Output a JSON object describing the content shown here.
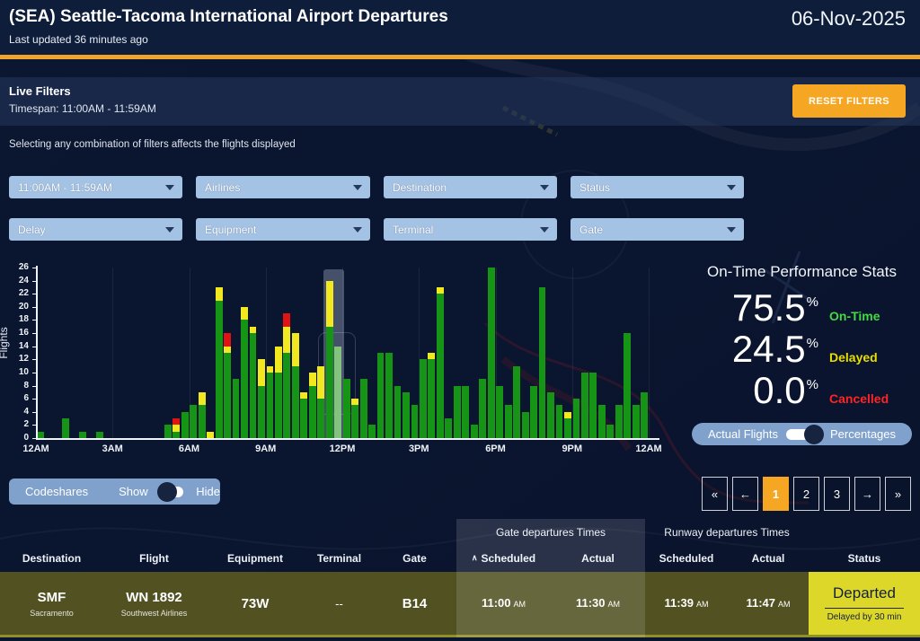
{
  "header": {
    "title": "(SEA) Seattle-Tacoma International Airport Departures",
    "subtitle": "Last updated 36 minutes ago",
    "date": "06-Nov-2025"
  },
  "filters": {
    "panel_title": "Live Filters",
    "timespan_label": "Timespan: 11:00AM - 11:59AM",
    "reset_button": "RESET FILTERS",
    "hint": "Selecting any combination of filters affects the flights displayed",
    "dropdowns": [
      "11:00AM - 11:59AM",
      "Airlines",
      "Destination",
      "Status",
      "Delay",
      "Equipment",
      "Terminal",
      "Gate"
    ]
  },
  "stats": {
    "title": "On-Time Performance Stats",
    "items": [
      {
        "value": "75.5",
        "unit": "%",
        "label": "On-Time",
        "color": "#43d943"
      },
      {
        "value": "24.5",
        "unit": "%",
        "label": "Delayed",
        "color": "#e8de00"
      },
      {
        "value": "0.0",
        "unit": "%",
        "label": "Cancelled",
        "color": "#ff2424"
      }
    ],
    "toggle": {
      "left": "Actual Flights",
      "right": "Percentages",
      "selected": "Percentages"
    }
  },
  "codeshares": {
    "label": "Codeshares",
    "left": "Show",
    "right": "Hide",
    "selected": "Show"
  },
  "pagination": {
    "buttons": [
      "«",
      "←",
      "1",
      "2",
      "3",
      "→",
      "»"
    ],
    "active": "1"
  },
  "table": {
    "group_headers": {
      "gate": "Gate departures Times",
      "runway": "Runway departures Times"
    },
    "columns": [
      "Destination",
      "Flight",
      "Equipment",
      "Terminal",
      "Gate",
      "Scheduled",
      "Actual",
      "Scheduled",
      "Actual",
      "Status"
    ],
    "sort_indicator": "∧",
    "rows": [
      {
        "destination": "SMF",
        "destination_sub": "Sacramento",
        "flight": "WN 1892",
        "flight_sub": "Southwest Airlines",
        "equipment": "73W",
        "terminal": "--",
        "gate": "B14",
        "gate_scheduled": {
          "time": "11:00",
          "meridiem": "AM"
        },
        "gate_actual": {
          "time": "11:30",
          "meridiem": "AM"
        },
        "runway_scheduled": {
          "time": "11:39",
          "meridiem": "AM"
        },
        "runway_actual": {
          "time": "11:47",
          "meridiem": "AM"
        },
        "status": "Departed",
        "status_sub": "Delayed by 30 min"
      }
    ]
  },
  "chart_data": {
    "type": "bar",
    "stacked": true,
    "title": "",
    "xlabel": "",
    "ylabel": "Flights",
    "ylim": [
      0,
      26
    ],
    "ytick_step": 2,
    "x_description": "Time of day in 20-minute bins, 12AM to 12AM",
    "x_labels": [
      "12AM",
      "3AM",
      "6AM",
      "9AM",
      "12PM",
      "3PM",
      "6PM",
      "9PM",
      "12AM"
    ],
    "label_every_bins": 9,
    "series_names": [
      "On-Time (green)",
      "Delayed (yellow)",
      "Cancelled (red)"
    ],
    "bars": [
      [
        1,
        0,
        0
      ],
      [
        0,
        0,
        0
      ],
      [
        0,
        0,
        0
      ],
      [
        3,
        0,
        0
      ],
      [
        0,
        0,
        0
      ],
      [
        1,
        0,
        0
      ],
      [
        0,
        0,
        0
      ],
      [
        1,
        0,
        0
      ],
      [
        0,
        0,
        0
      ],
      [
        0,
        0,
        0
      ],
      [
        0,
        0,
        0
      ],
      [
        0,
        0,
        0
      ],
      [
        0,
        0,
        0
      ],
      [
        0,
        0,
        0
      ],
      [
        0,
        0,
        0
      ],
      [
        2,
        0,
        0
      ],
      [
        1,
        1,
        1
      ],
      [
        4,
        0,
        0
      ],
      [
        5,
        0,
        0
      ],
      [
        5,
        2,
        0
      ],
      [
        0,
        1,
        0
      ],
      [
        21,
        2,
        0
      ],
      [
        13,
        1,
        2
      ],
      [
        9,
        0,
        0
      ],
      [
        18,
        2,
        0
      ],
      [
        16,
        1,
        0
      ],
      [
        8,
        4,
        0
      ],
      [
        10,
        1,
        0
      ],
      [
        10,
        4,
        0
      ],
      [
        13,
        4,
        2
      ],
      [
        11,
        5,
        0
      ],
      [
        6,
        1,
        0
      ],
      [
        8,
        2,
        0
      ],
      [
        6,
        5,
        0
      ],
      [
        17,
        7,
        0
      ],
      [
        14,
        0,
        0
      ],
      [
        9,
        0,
        0
      ],
      [
        5,
        1,
        0
      ],
      [
        9,
        0,
        0
      ],
      [
        2,
        0,
        0
      ],
      [
        13,
        0,
        0
      ],
      [
        13,
        0,
        0
      ],
      [
        8,
        0,
        0
      ],
      [
        7,
        0,
        0
      ],
      [
        5,
        0,
        0
      ],
      [
        12,
        0,
        0
      ],
      [
        12,
        1,
        0
      ],
      [
        22,
        1,
        0
      ],
      [
        3,
        0,
        0
      ],
      [
        8,
        0,
        0
      ],
      [
        8,
        0,
        0
      ],
      [
        2,
        0,
        0
      ],
      [
        9,
        0,
        0
      ],
      [
        26,
        0,
        0
      ],
      [
        8,
        0,
        0
      ],
      [
        5,
        0,
        0
      ],
      [
        11,
        0,
        0
      ],
      [
        4,
        0,
        0
      ],
      [
        8,
        0,
        0
      ],
      [
        23,
        0,
        0
      ],
      [
        7,
        0,
        0
      ],
      [
        5,
        0,
        0
      ],
      [
        3,
        1,
        0
      ],
      [
        6,
        0,
        0
      ],
      [
        10,
        0,
        0
      ],
      [
        10,
        0,
        0
      ],
      [
        5,
        0,
        0
      ],
      [
        2,
        0,
        0
      ],
      [
        5,
        0,
        0
      ],
      [
        16,
        0,
        0
      ],
      [
        5,
        0,
        0
      ],
      [
        7,
        0,
        0
      ]
    ],
    "highlight_band_bins": [
      34,
      35
    ],
    "light_bar_bin": 35,
    "colors": {
      "green": "#169416",
      "light_green": "#84c37f",
      "yellow": "#f2e81f",
      "red": "#e01212",
      "accent_orange": "#f5a623"
    },
    "legend": "none"
  }
}
